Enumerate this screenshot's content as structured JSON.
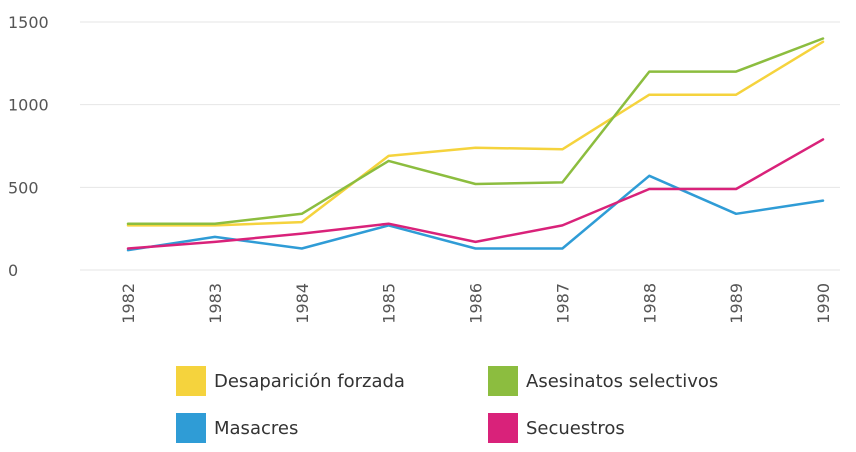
{
  "chart_data": {
    "type": "line",
    "x": [
      "1982",
      "1983",
      "1984",
      "1985",
      "1986",
      "1987",
      "1988",
      "1989",
      "1990"
    ],
    "ylim": [
      0,
      1500
    ],
    "yticks": [
      0,
      500,
      1000,
      1500
    ],
    "grid": true,
    "legend_position": "bottom",
    "series": [
      {
        "name": "Desaparición forzada",
        "color": "#f5d33d",
        "values": [
          270,
          270,
          290,
          690,
          740,
          730,
          1060,
          1060,
          1380
        ]
      },
      {
        "name": "Asesinatos selectivos",
        "color": "#8cbd3f",
        "values": [
          280,
          280,
          340,
          660,
          520,
          530,
          1200,
          1200,
          1400
        ]
      },
      {
        "name": "Masacres",
        "color": "#2f9cd6",
        "values": [
          120,
          200,
          130,
          270,
          130,
          130,
          570,
          340,
          420
        ]
      },
      {
        "name": "Secuestros",
        "color": "#d9227a",
        "values": [
          130,
          170,
          220,
          280,
          170,
          270,
          490,
          490,
          790
        ]
      }
    ]
  }
}
